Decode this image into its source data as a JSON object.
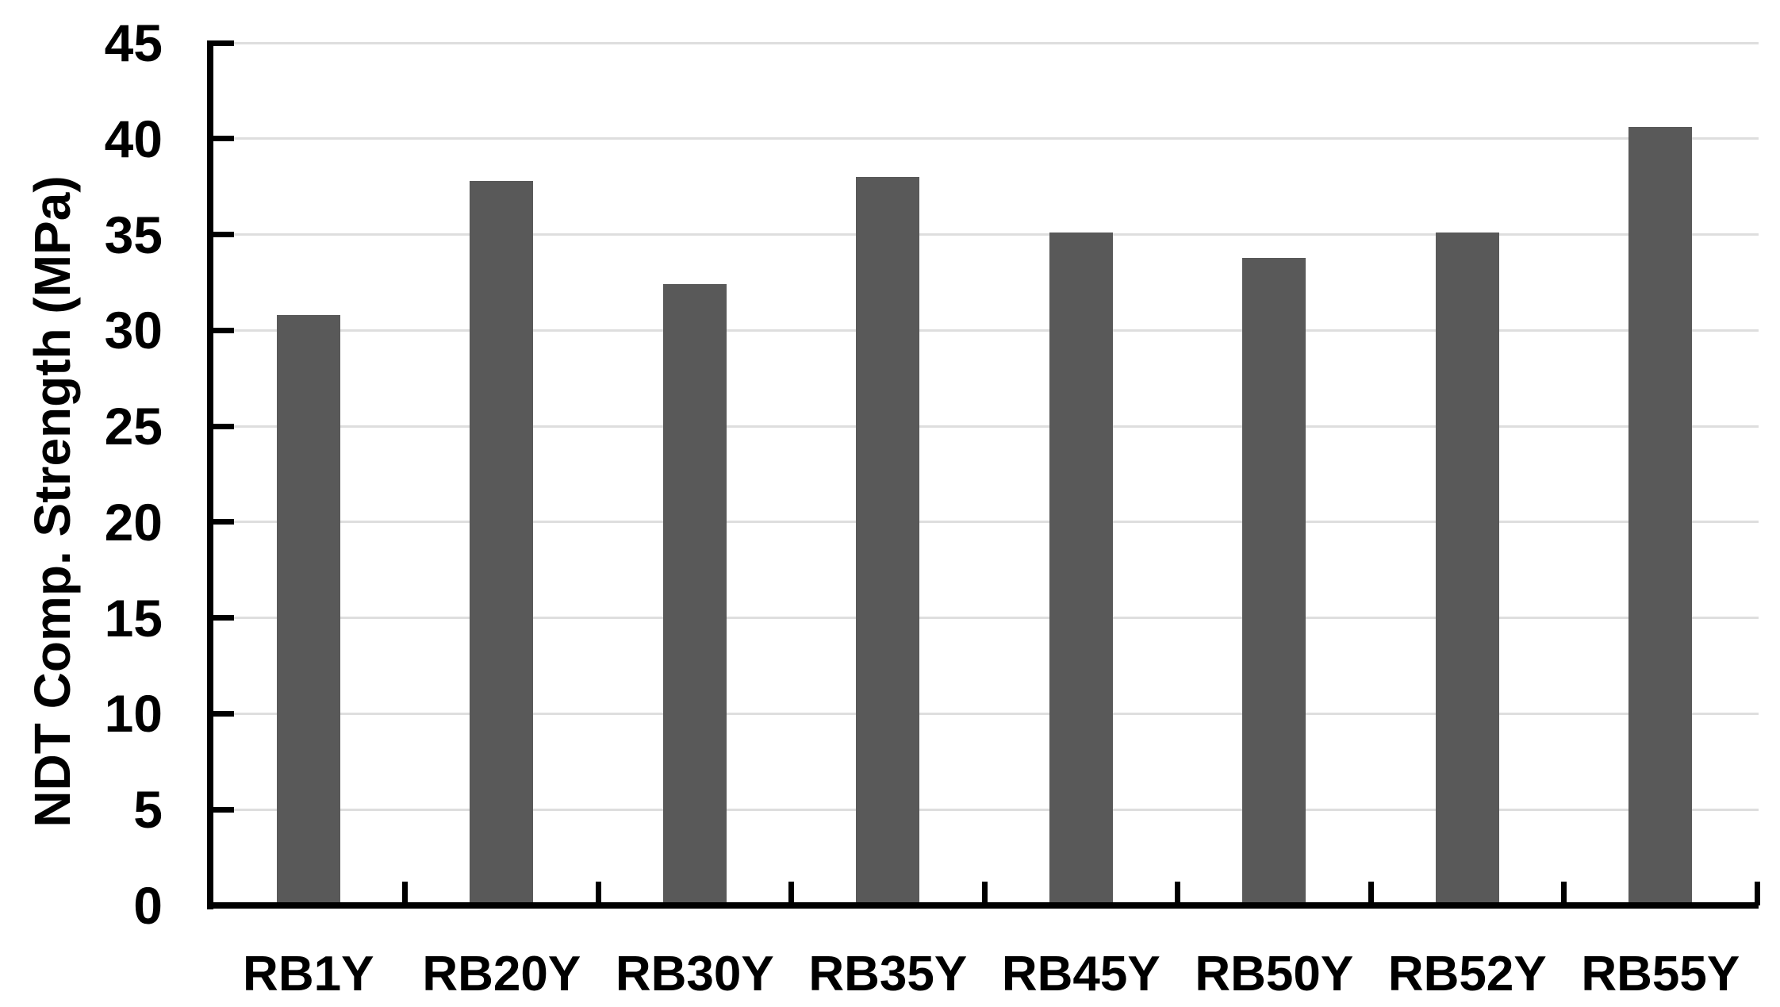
{
  "chart_data": {
    "type": "bar",
    "categories": [
      "RB1Y",
      "RB20Y",
      "RB30Y",
      "RB35Y",
      "RB45Y",
      "RB50Y",
      "RB52Y",
      "RB55Y"
    ],
    "values": [
      30.8,
      37.8,
      32.4,
      38.0,
      35.1,
      33.8,
      35.1,
      40.6
    ],
    "title": "",
    "xlabel": "",
    "ylabel": "NDT Comp. Strength (MPa)",
    "ylim": [
      0,
      45
    ],
    "yticks": [
      0,
      5,
      10,
      15,
      20,
      25,
      30,
      35,
      40,
      45
    ],
    "grid": true,
    "legend": false,
    "bar_color": "#595959",
    "gridline_color": "#dedede",
    "axis_color": "#000000",
    "text_color": "#000000"
  }
}
